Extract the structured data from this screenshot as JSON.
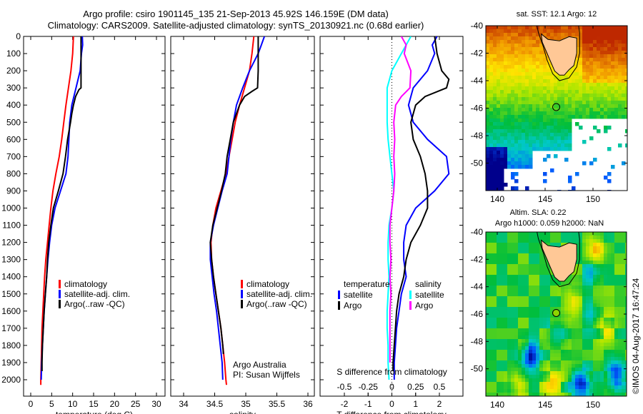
{
  "header": {
    "line1": "Argo profile: csiro 1901145_135 21-Sep-2013 45.92S 146.159E (DM data)",
    "line2": "Climatology: CARS2009. Satellite-adjusted climatology: synTS_20130921.nc (0.68d earlier)"
  },
  "colors": {
    "climatology": "#ff0000",
    "satellite": "#0000ff",
    "argo": "#000000",
    "sal_satellite": "#00ffff",
    "sal_argo": "#ff00ff",
    "land": "#ffc896"
  },
  "chart_data": [
    {
      "type": "line",
      "name": "temperature-profile",
      "xlabel": "temperature (deg C)",
      "ylabel": "depth",
      "xlim": [
        -2,
        32
      ],
      "ylim": [
        2060,
        0
      ],
      "xticks": [
        0,
        5,
        10,
        15,
        20,
        25,
        30
      ],
      "yticks": [
        0,
        100,
        200,
        300,
        400,
        500,
        600,
        700,
        800,
        900,
        1000,
        1100,
        1200,
        1300,
        1400,
        1500,
        1600,
        1700,
        1800,
        1900,
        2000
      ],
      "legend": [
        "climatology",
        "satellite-adj. clim.",
        "Argo(..raw -QC)"
      ],
      "legend_position": "lower-middle",
      "series": [
        {
          "name": "climatology",
          "color": "#ff0000",
          "depth": [
            0,
            100,
            200,
            300,
            400,
            500,
            600,
            700,
            800,
            900,
            1000,
            1100,
            1200,
            1300,
            1400,
            1500,
            1600,
            1700,
            1800,
            1900,
            2000,
            2030
          ],
          "values": [
            10.2,
            10.0,
            9.6,
            9.0,
            8.4,
            7.9,
            7.4,
            6.8,
            6.0,
            5.3,
            4.8,
            4.4,
            4.0,
            3.6,
            3.3,
            3.1,
            2.9,
            2.7,
            2.6,
            2.5,
            2.4,
            2.4
          ]
        },
        {
          "name": "satellite-adj. clim.",
          "color": "#0000ff",
          "depth": [
            0,
            50,
            100,
            200,
            300,
            400,
            500,
            600,
            700,
            800,
            900,
            1000,
            1100,
            1200,
            1300,
            1400,
            1500,
            1600,
            1700,
            1800,
            1900,
            2000
          ],
          "values": [
            12.3,
            12.4,
            12.1,
            11.8,
            10.8,
            9.8,
            9.3,
            9.1,
            8.9,
            8.4,
            7.1,
            5.8,
            5.0,
            4.5,
            4.1,
            3.8,
            3.5,
            3.2,
            3.0,
            2.8,
            2.6,
            2.5
          ]
        },
        {
          "name": "Argo",
          "color": "#000000",
          "depth": [
            0,
            100,
            200,
            300,
            310,
            350,
            400,
            450,
            500,
            600,
            700,
            800,
            900,
            1000,
            1100,
            1200,
            1300,
            1400,
            1500,
            1600,
            1700,
            1800,
            1900,
            1950
          ],
          "values": [
            12.0,
            12.0,
            12.0,
            12.0,
            11.5,
            10.7,
            10.2,
            9.8,
            9.5,
            8.8,
            8.3,
            7.7,
            6.6,
            5.4,
            4.8,
            4.3,
            4.0,
            3.8,
            3.5,
            3.2,
            3.0,
            2.8,
            2.7,
            2.7
          ]
        }
      ]
    },
    {
      "type": "line",
      "name": "salinity-profile",
      "xlabel": "salinity",
      "xlim": [
        33.8,
        36.1
      ],
      "ylim": [
        2060,
        0
      ],
      "xticks": [
        34,
        34.5,
        35,
        35.5,
        36
      ],
      "legend": [
        "climatology",
        "satellite-adj. clim.",
        "Argo(..raw -QC)"
      ],
      "legend_position": "lower-right",
      "annotation": [
        "Argo Australia",
        "PI: Susan Wijffels"
      ],
      "series": [
        {
          "name": "climatology",
          "color": "#ff0000",
          "depth": [
            0,
            100,
            200,
            300,
            400,
            500,
            600,
            700,
            800,
            900,
            1000,
            1100,
            1200,
            1300,
            1400,
            1500,
            1600,
            1700,
            1800,
            1900,
            2000,
            2030
          ],
          "values": [
            35.13,
            35.1,
            35.06,
            34.98,
            34.9,
            34.83,
            34.78,
            34.73,
            34.68,
            34.6,
            34.52,
            34.47,
            34.44,
            34.45,
            34.48,
            34.52,
            34.56,
            34.6,
            34.63,
            34.66,
            34.68,
            34.69
          ]
        },
        {
          "name": "satellite-adj. clim.",
          "color": "#0000ff",
          "depth": [
            0,
            50,
            100,
            200,
            300,
            400,
            500,
            600,
            700,
            800,
            900,
            1000,
            1100,
            1200,
            1300,
            1400,
            1500,
            1600,
            1700,
            1800,
            1900,
            2000
          ],
          "values": [
            35.3,
            35.25,
            35.2,
            35.06,
            34.95,
            34.85,
            34.8,
            34.76,
            34.73,
            34.7,
            34.62,
            34.55,
            34.48,
            34.43,
            34.43,
            34.46,
            34.49,
            34.53,
            34.56,
            34.59,
            34.62,
            34.63
          ]
        },
        {
          "name": "Argo",
          "color": "#000000",
          "depth": [
            0,
            100,
            200,
            300,
            320,
            350,
            400,
            450,
            500,
            600,
            700,
            800,
            900,
            1000,
            1100,
            1200,
            1300,
            1400,
            1500,
            1600,
            1700,
            1800,
            1850
          ],
          "values": [
            35.2,
            35.2,
            35.2,
            35.19,
            35.1,
            34.98,
            34.9,
            34.85,
            34.8,
            34.75,
            34.7,
            34.67,
            34.61,
            34.54,
            34.47,
            34.43,
            34.45,
            34.48,
            34.52,
            34.56,
            34.6,
            34.63,
            34.64
          ]
        }
      ]
    },
    {
      "type": "line",
      "name": "difference-profile",
      "xlabel": "T difference from climatology",
      "x2label": "S difference from climatology",
      "xlim": [
        -3,
        3
      ],
      "x2lim": [
        -0.75,
        0.75
      ],
      "ylim": [
        2060,
        0
      ],
      "xticks": [
        -2,
        -1,
        0,
        1,
        2
      ],
      "x2ticks": [
        "-0.5",
        "-0.25",
        "0",
        "0.25",
        "0.5"
      ],
      "x2tick_values": [
        -0.5,
        -0.25,
        0,
        0.25,
        0.5
      ],
      "legend_temperature_title": "temperature",
      "legend_temperature": [
        "satellite",
        "Argo"
      ],
      "legend_salinity_title": "salinity",
      "legend_salinity": [
        "satellite",
        "Argo"
      ],
      "zero_line": "dotted",
      "series": [
        {
          "name": "T satellite",
          "axis": "T",
          "color": "#0000ff",
          "depth": [
            0,
            50,
            100,
            200,
            300,
            400,
            500,
            600,
            700,
            800,
            900,
            1000,
            1100,
            1200,
            1300,
            1400,
            1500,
            1600,
            1700,
            1800,
            1900,
            2000
          ],
          "values": [
            1.9,
            1.7,
            1.8,
            1.5,
            0.9,
            0.7,
            0.9,
            1.5,
            2.3,
            2.4,
            1.8,
            1.0,
            0.6,
            0.5,
            0.5,
            0.6,
            0.4,
            0.3,
            0.2,
            0.15,
            0.1,
            0.1
          ]
        },
        {
          "name": "T Argo",
          "axis": "T",
          "color": "#000000",
          "depth": [
            0,
            100,
            200,
            250,
            300,
            350,
            400,
            500,
            600,
            700,
            800,
            900,
            1000,
            1100,
            1200,
            1300,
            1400,
            1500,
            1600,
            1700,
            1800,
            1900,
            1950
          ],
          "values": [
            1.8,
            1.9,
            2.1,
            2.4,
            2.3,
            1.4,
            1.0,
            0.8,
            0.9,
            1.2,
            1.4,
            1.5,
            1.5,
            1.2,
            0.8,
            0.6,
            0.5,
            0.3,
            0.2,
            0.15,
            0.1,
            0.05,
            0.05
          ]
        },
        {
          "name": "S satellite",
          "axis": "S",
          "color": "#00ffff",
          "depth": [
            0,
            50,
            100,
            200,
            300,
            400,
            500,
            600,
            700,
            800,
            900,
            1000,
            1100,
            1200,
            1300,
            1400,
            1500,
            1600,
            1700,
            1800,
            1900,
            2000
          ],
          "values": [
            0.2,
            0.15,
            0.1,
            0.0,
            -0.05,
            -0.05,
            -0.05,
            -0.04,
            -0.02,
            0.0,
            0.02,
            0.0,
            -0.03,
            -0.04,
            -0.04,
            -0.03,
            -0.04,
            -0.05,
            -0.05,
            -0.04,
            -0.04,
            -0.03
          ]
        },
        {
          "name": "S Argo",
          "axis": "S",
          "color": "#ff00ff",
          "depth": [
            0,
            50,
            100,
            200,
            300,
            350,
            400,
            500,
            600,
            700,
            800,
            900,
            1000,
            1100,
            1200,
            1300,
            1400,
            1500,
            1600,
            1700,
            1800,
            1900
          ],
          "values": [
            0.1,
            0.15,
            0.13,
            0.2,
            0.19,
            0.1,
            0.04,
            0.02,
            0.03,
            0.02,
            0.03,
            0.02,
            0.0,
            -0.02,
            -0.02,
            -0.01,
            -0.02,
            -0.01,
            -0.02,
            -0.02,
            -0.02,
            -0.02
          ]
        }
      ]
    },
    {
      "type": "heatmap",
      "name": "sst-map",
      "title": "sat. SST: 12.1 Argo: 12",
      "xlim": [
        138.8,
        153.5
      ],
      "ylim": [
        -52,
        -40
      ],
      "xticks": [
        140,
        145,
        150
      ],
      "yticks": [
        -40,
        -42,
        -44,
        -46,
        -48,
        -50
      ],
      "marker": {
        "lon": 146.159,
        "lat": -45.92
      }
    },
    {
      "type": "heatmap",
      "name": "sla-map",
      "title_line1": "Altim. SLA: 0.22",
      "title_line2": "Argo h1000: 0.059 h2000: NaN",
      "xlim": [
        138.8,
        153.5
      ],
      "ylim": [
        -52,
        -40
      ],
      "xticks": [
        140,
        145,
        150
      ],
      "yticks": [
        -40,
        -42,
        -44,
        -46,
        -48,
        -50
      ],
      "marker": {
        "lon": 146.159,
        "lat": -45.92
      }
    }
  ],
  "footer": {
    "credit": "©IMOS 04-Aug-2017 16:47:24"
  }
}
